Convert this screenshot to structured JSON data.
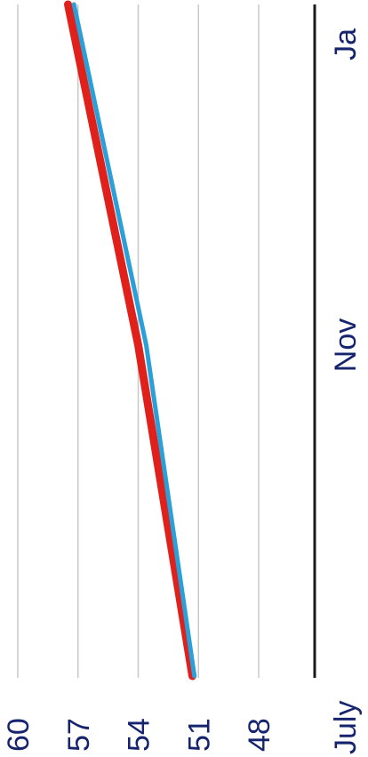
{
  "chart_data": {
    "type": "line",
    "orientation": "rotated-90",
    "categories": [
      "July",
      "Nov",
      "Ja"
    ],
    "x": [
      0,
      4,
      6
    ],
    "y_ticks": [
      48,
      51,
      54,
      57,
      60
    ],
    "ylim": [
      47,
      61
    ],
    "grid": true,
    "series": [
      {
        "color": "#e0201b",
        "values": [
          51.3,
          54.0,
          57.5
        ],
        "x": [
          0,
          4,
          6
        ]
      },
      {
        "color": "#2a9fd8",
        "values": [
          51.2,
          53.6,
          57.2
        ],
        "x": [
          0,
          4,
          6
        ]
      }
    ]
  }
}
